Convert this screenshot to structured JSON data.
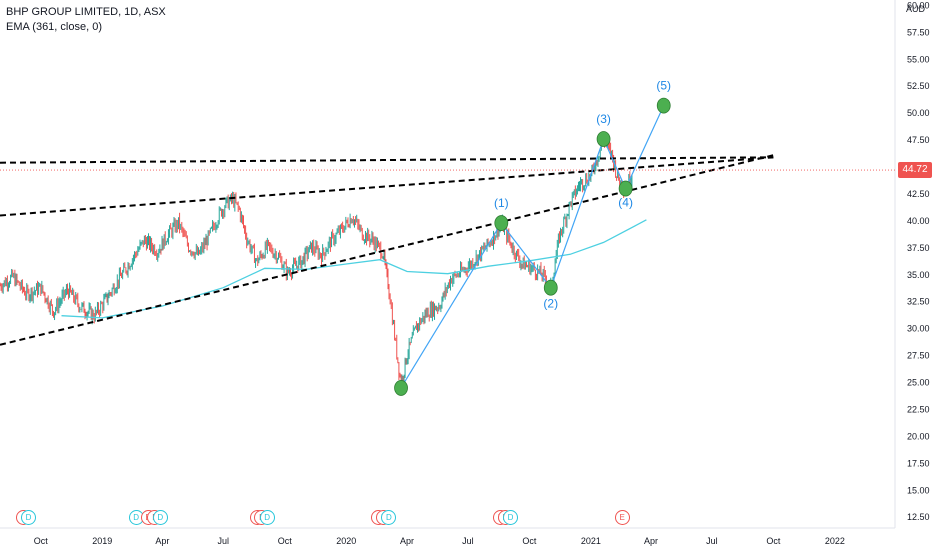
{
  "header": {
    "symbol_line": "BHP GROUP LIMITED, 1D, ASX",
    "indicator_line": "EMA (361, close, 0)"
  },
  "currency": "AUD",
  "last_price": "44.72",
  "colors": {
    "up": "#26a69a",
    "down": "#ef5350",
    "ema": "#4dd0e1",
    "wave": "#42a5f5",
    "node": "#4caf50",
    "trend": "#000000",
    "price_line": "#ef5350"
  },
  "chart_data": {
    "type": "line",
    "title": "",
    "x_axis": {
      "ticks": [
        "Oct",
        "2019",
        "Apr",
        "Jul",
        "Oct",
        "2020",
        "Apr",
        "Jul",
        "Oct",
        "2021",
        "Apr",
        "Jul",
        "Oct",
        "2022"
      ],
      "tick_dates": [
        "2018-10-01",
        "2019-01-01",
        "2019-04-01",
        "2019-07-01",
        "2019-10-01",
        "2020-01-01",
        "2020-04-01",
        "2020-07-01",
        "2020-10-01",
        "2021-01-01",
        "2021-04-01",
        "2021-07-01",
        "2021-10-01",
        "2022-01-01"
      ],
      "range": [
        "2018-08-01",
        "2022-04-01"
      ]
    },
    "y_axis": {
      "ticks": [
        "60.00",
        "57.50",
        "55.00",
        "52.50",
        "50.00",
        "47.50",
        "45.00",
        "42.50",
        "40.00",
        "37.50",
        "35.00",
        "32.50",
        "30.00",
        "27.50",
        "25.00",
        "22.50",
        "20.00",
        "17.50",
        "15.00",
        "12.50"
      ],
      "range": [
        11.5,
        60.5
      ],
      "label": "AUD"
    },
    "price_series": {
      "name": "BHP GROUP LIMITED",
      "interval": "1D",
      "points": [
        [
          "2018-08-01",
          34.0
        ],
        [
          "2018-08-20",
          34.8
        ],
        [
          "2018-09-10",
          33.2
        ],
        [
          "2018-10-01",
          33.8
        ],
        [
          "2018-10-20",
          31.6
        ],
        [
          "2018-11-10",
          33.6
        ],
        [
          "2018-11-30",
          32.0
        ],
        [
          "2018-12-20",
          31.2
        ],
        [
          "2019-01-05",
          32.6
        ],
        [
          "2019-01-25",
          34.5
        ],
        [
          "2019-02-15",
          36.5
        ],
        [
          "2019-03-05",
          38.2
        ],
        [
          "2019-03-25",
          37.2
        ],
        [
          "2019-04-10",
          38.8
        ],
        [
          "2019-04-25",
          39.8
        ],
        [
          "2019-05-10",
          37.6
        ],
        [
          "2019-05-25",
          36.8
        ],
        [
          "2019-06-10",
          38.6
        ],
        [
          "2019-06-25",
          40.6
        ],
        [
          "2019-07-05",
          41.6
        ],
        [
          "2019-07-15",
          42.0
        ],
        [
          "2019-07-25",
          41.0
        ],
        [
          "2019-08-05",
          38.4
        ],
        [
          "2019-08-20",
          36.2
        ],
        [
          "2019-09-05",
          37.6
        ],
        [
          "2019-09-20",
          36.8
        ],
        [
          "2019-10-05",
          35.2
        ],
        [
          "2019-10-25",
          36.2
        ],
        [
          "2019-11-10",
          37.6
        ],
        [
          "2019-11-25",
          36.8
        ],
        [
          "2019-12-10",
          38.2
        ],
        [
          "2019-12-25",
          39.2
        ],
        [
          "2020-01-10",
          40.4
        ],
        [
          "2020-01-25",
          38.8
        ],
        [
          "2020-02-10",
          38.2
        ],
        [
          "2020-02-25",
          37.0
        ],
        [
          "2020-03-05",
          33.6
        ],
        [
          "2020-03-15",
          28.5
        ],
        [
          "2020-03-23",
          24.8
        ],
        [
          "2020-04-01",
          27.6
        ],
        [
          "2020-04-15",
          30.2
        ],
        [
          "2020-05-01",
          31.5
        ],
        [
          "2020-05-20",
          32.2
        ],
        [
          "2020-06-05",
          34.6
        ],
        [
          "2020-06-20",
          35.2
        ],
        [
          "2020-07-05",
          36.0
        ],
        [
          "2020-07-20",
          37.0
        ],
        [
          "2020-08-05",
          38.2
        ],
        [
          "2020-08-20",
          39.8
        ],
        [
          "2020-09-05",
          37.6
        ],
        [
          "2020-09-20",
          36.0
        ],
        [
          "2020-10-05",
          35.6
        ],
        [
          "2020-10-20",
          35.0
        ],
        [
          "2020-11-02",
          33.8
        ],
        [
          "2020-11-15",
          38.6
        ],
        [
          "2020-12-01",
          41.6
        ],
        [
          "2020-12-15",
          43.4
        ],
        [
          "2021-01-01",
          44.2
        ],
        [
          "2021-01-10",
          45.8
        ],
        [
          "2021-01-20",
          47.6
        ],
        [
          "2021-02-01",
          46.2
        ],
        [
          "2021-02-10",
          44.0
        ],
        [
          "2021-02-22",
          42.9
        ],
        [
          "2021-03-05",
          44.72
        ]
      ]
    },
    "ema_series": {
      "name": "EMA (361, close, 0)",
      "points": [
        [
          "2018-11-01",
          31.2
        ],
        [
          "2019-01-01",
          31.0
        ],
        [
          "2019-04-01",
          32.1
        ],
        [
          "2019-07-01",
          33.8
        ],
        [
          "2019-09-01",
          35.6
        ],
        [
          "2019-11-01",
          35.5
        ],
        [
          "2020-01-01",
          36.0
        ],
        [
          "2020-02-20",
          36.4
        ],
        [
          "2020-04-01",
          35.3
        ],
        [
          "2020-06-01",
          35.1
        ],
        [
          "2020-08-01",
          35.8
        ],
        [
          "2020-10-01",
          36.3
        ],
        [
          "2020-12-01",
          36.9
        ],
        [
          "2021-01-20",
          38.0
        ],
        [
          "2021-03-10",
          39.6
        ],
        [
          "2021-03-25",
          40.1
        ]
      ]
    },
    "wave_labels": [
      {
        "label": "(1)",
        "date": "2020-08-20",
        "value": 39.8
      },
      {
        "label": "(2)",
        "date": "2020-11-02",
        "value": 33.8
      },
      {
        "label": "(3)",
        "date": "2021-01-20",
        "value": 47.6
      },
      {
        "label": "(4)",
        "date": "2021-02-22",
        "value": 43.0
      },
      {
        "label": "(5)",
        "date": "2021-04-20",
        "value": 50.7
      }
    ],
    "wave_start": {
      "date": "2020-03-23",
      "value": 24.5
    },
    "trend_lines": [
      {
        "from": [
          "2018-08-01",
          45.4
        ],
        "to": [
          "2021-10-01",
          45.9
        ]
      },
      {
        "from": [
          "2018-08-01",
          40.5
        ],
        "to": [
          "2021-10-01",
          45.9
        ]
      },
      {
        "from": [
          "2018-08-01",
          28.5
        ],
        "to": [
          "2021-10-01",
          46.1
        ]
      }
    ],
    "event_markers": [
      {
        "date": "2018-09-05",
        "kind": "E"
      },
      {
        "date": "2018-09-12",
        "kind": "D"
      },
      {
        "date": "2019-02-20",
        "kind": "D"
      },
      {
        "date": "2019-03-10",
        "kind": "E"
      },
      {
        "date": "2019-03-20",
        "kind": "E"
      },
      {
        "date": "2019-03-28",
        "kind": "D"
      },
      {
        "date": "2019-08-20",
        "kind": "E"
      },
      {
        "date": "2019-08-27",
        "kind": "E"
      },
      {
        "date": "2019-09-04",
        "kind": "D"
      },
      {
        "date": "2020-02-18",
        "kind": "E"
      },
      {
        "date": "2020-02-25",
        "kind": "E"
      },
      {
        "date": "2020-03-04",
        "kind": "D"
      },
      {
        "date": "2020-08-18",
        "kind": "E"
      },
      {
        "date": "2020-08-25",
        "kind": "E"
      },
      {
        "date": "2020-09-02",
        "kind": "D"
      },
      {
        "date": "2021-02-16",
        "kind": "E"
      }
    ],
    "grid": false,
    "legend": "top-left"
  }
}
